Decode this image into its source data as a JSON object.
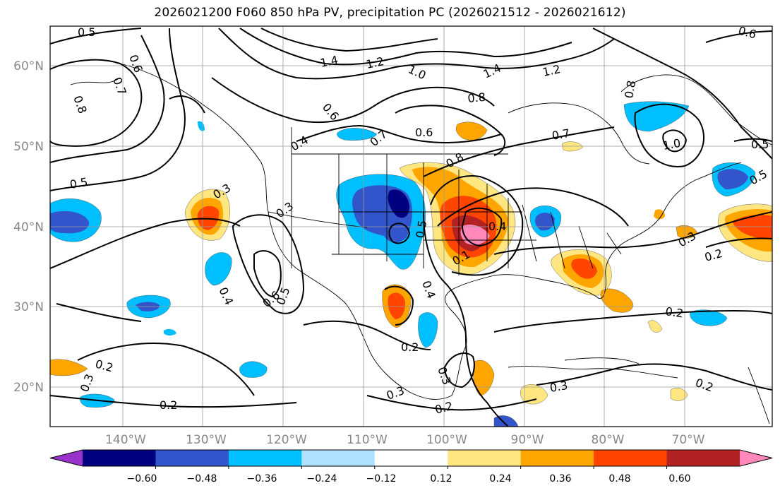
{
  "title": "2026021200 F060 850 hPa PV, precipitation PC (2026021512 - 2026021612)",
  "latitude_labels": [
    "60°N",
    "50°N",
    "40°N",
    "30°N",
    "20°N"
  ],
  "longitude_labels": [
    "140°W",
    "130°W",
    "120°W",
    "110°W",
    "100°W",
    "90°W",
    "80°W",
    "70°W"
  ],
  "colorbar": {
    "tick_labels": [
      "−0.60",
      "−0.48",
      "−0.36",
      "−0.24",
      "−0.12",
      "0.12",
      "0.24",
      "0.36",
      "0.48",
      "0.60"
    ],
    "colors": [
      "#9933cc",
      "#000080",
      "#3355cc",
      "#00bfff",
      "#b0e0ff",
      "#ffffff",
      "#ffe680",
      "#ffa500",
      "#ff4500",
      "#b22222",
      "#ff88bb"
    ]
  },
  "contour_labels": [
    "0.5",
    "0.6",
    "1.4",
    "1.2",
    "1.0",
    "1.4",
    "1.2",
    "0.6",
    "0.7",
    "0.8",
    "0.6",
    "0.7",
    "0.5",
    "0.8",
    "0.4",
    "0.6",
    "0.7",
    "0.8",
    "0.5",
    "0.3",
    "0.3",
    "0.5",
    "0.4",
    "0.5",
    "0.6",
    "0.4",
    "0.1",
    "0.4",
    "0.3",
    "0.2",
    "0.2",
    "0.2",
    "0.3",
    "0.2",
    "0.2",
    "0.3",
    "0.2",
    "0.2",
    "0.5",
    "0.3",
    "0.3",
    "1.0",
    "0.8"
  ]
}
